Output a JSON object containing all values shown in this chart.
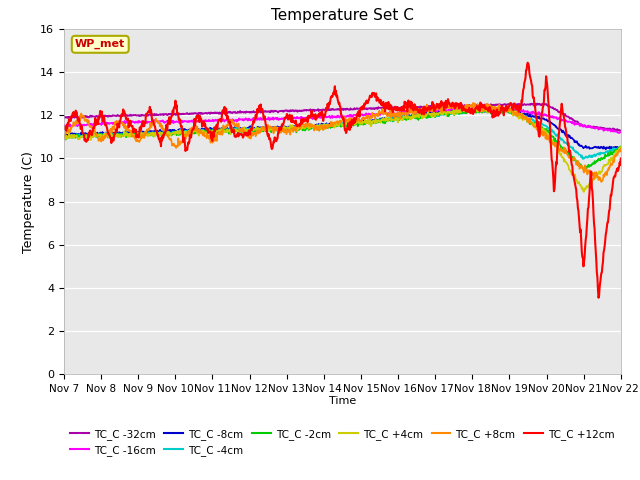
{
  "title": "Temperature Set C",
  "xlabel": "Time",
  "ylabel": "Temperature (C)",
  "ylim": [
    0,
    16
  ],
  "yticks": [
    0,
    2,
    4,
    6,
    8,
    10,
    12,
    14,
    16
  ],
  "x_labels": [
    "Nov 7",
    "Nov 8",
    "Nov 9",
    "Nov 10",
    "Nov 11",
    "Nov 12",
    "Nov 13",
    "Nov 14",
    "Nov 15",
    "Nov 16",
    "Nov 17",
    "Nov 18",
    "Nov 19",
    "Nov 20",
    "Nov 21",
    "Nov 22"
  ],
  "wp_met_box_color": "#ffffcc",
  "wp_met_border_color": "#aaaa00",
  "background_color": "#e8e8e8",
  "series": {
    "TC_C -32cm": {
      "color": "#aa00aa",
      "lw": 1.3
    },
    "TC_C -16cm": {
      "color": "#ff00ff",
      "lw": 1.2
    },
    "TC_C -8cm": {
      "color": "#0000cc",
      "lw": 1.2
    },
    "TC_C -4cm": {
      "color": "#00cccc",
      "lw": 1.2
    },
    "TC_C -2cm": {
      "color": "#00cc00",
      "lw": 1.2
    },
    "TC_C +4cm": {
      "color": "#cccc00",
      "lw": 1.2
    },
    "TC_C +8cm": {
      "color": "#ff8800",
      "lw": 1.2
    },
    "TC_C +12cm": {
      "color": "#ff0000",
      "lw": 1.5
    }
  },
  "legend_order": [
    "TC_C -32cm",
    "TC_C -16cm",
    "TC_C -8cm",
    "TC_C -4cm",
    "TC_C -2cm",
    "TC_C +4cm",
    "TC_C +8cm",
    "TC_C +12cm"
  ]
}
